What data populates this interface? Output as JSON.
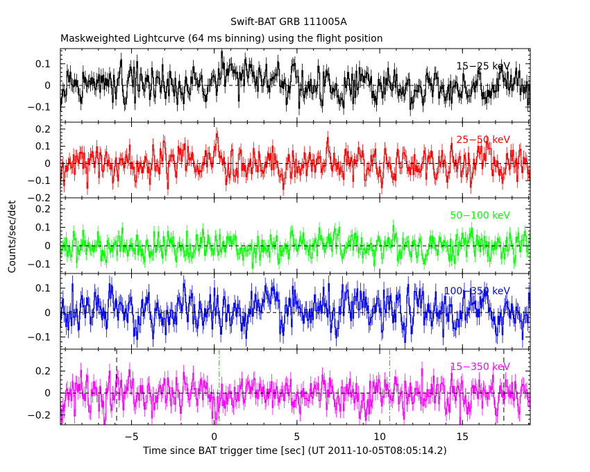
{
  "title": "Swift-BAT GRB 111005A",
  "subtitle": "Maskweighted Lightcurve (64 ms binning) using the flight position",
  "xlabel": "Time since BAT trigger time [sec] (UT 2011-10-05T08:05:14.2)",
  "ylabel": "Counts/sec/det",
  "chart_data": {
    "type": "line",
    "title": "Swift-BAT GRB 111005A",
    "xlabel": "Time since BAT trigger time [sec] (UT 2011-10-05T08:05:14.2)",
    "ylabel": "Counts/sec/det",
    "xlim": [
      -9.3,
      19.1
    ],
    "bin_width": 0.064,
    "x_ticks": [
      -5,
      0,
      5,
      10,
      15
    ],
    "x_tick_labels": [
      "−5",
      "0",
      "5",
      "10",
      "15"
    ],
    "vlines_dashed": [
      -5.9,
      17.5
    ],
    "vlines_dashdot": [
      0.3,
      10.6
    ],
    "series": [
      {
        "name": "15−25 keV",
        "color": "#000000",
        "ylim": [
          -0.17,
          0.17
        ],
        "yticks": [
          -0.1,
          0,
          0.1
        ],
        "ytick_labels": [
          "−0.1",
          "0",
          "0.1"
        ],
        "sigma": 0.042,
        "peaks": [
          {
            "x": 0.9,
            "amp": 0.08,
            "w": 0.25
          },
          {
            "x": 12.0,
            "amp": -0.1,
            "w": 0.1
          }
        ]
      },
      {
        "name": "25−50 keV",
        "color": "#ff0000",
        "ylim": [
          -0.2,
          0.24
        ],
        "yticks": [
          -0.2,
          -0.1,
          0,
          0.1,
          0.2
        ],
        "ytick_labels": [
          "−0.2",
          "−0.1",
          "0",
          "0.1",
          "0.2"
        ],
        "sigma": 0.05,
        "peaks": [
          {
            "x": 0.15,
            "amp": 0.13,
            "w": 0.1
          }
        ]
      },
      {
        "name": "50−100 keV",
        "color": "#00ff00",
        "ylim": [
          -0.15,
          0.26
        ],
        "yticks": [
          -0.1,
          0,
          0.1,
          0.2
        ],
        "ytick_labels": [
          "−0.1",
          "0",
          "0.1",
          "0.2"
        ],
        "sigma": 0.042,
        "peaks": []
      },
      {
        "name": "100−350 keV",
        "color": "#0000ff",
        "ylim": [
          -0.15,
          0.16
        ],
        "yticks": [
          -0.1,
          0,
          0.1
        ],
        "ytick_labels": [
          "−0.1",
          "0",
          "0.1"
        ],
        "sigma": 0.045,
        "peaks": []
      },
      {
        "name": "15−350 keV",
        "color": "#ff00ff",
        "ylim": [
          -0.29,
          0.4
        ],
        "yticks": [
          -0.2,
          0,
          0.2
        ],
        "ytick_labels": [
          "−0.2",
          "0",
          "0.2"
        ],
        "sigma": 0.09,
        "peaks": []
      }
    ]
  }
}
